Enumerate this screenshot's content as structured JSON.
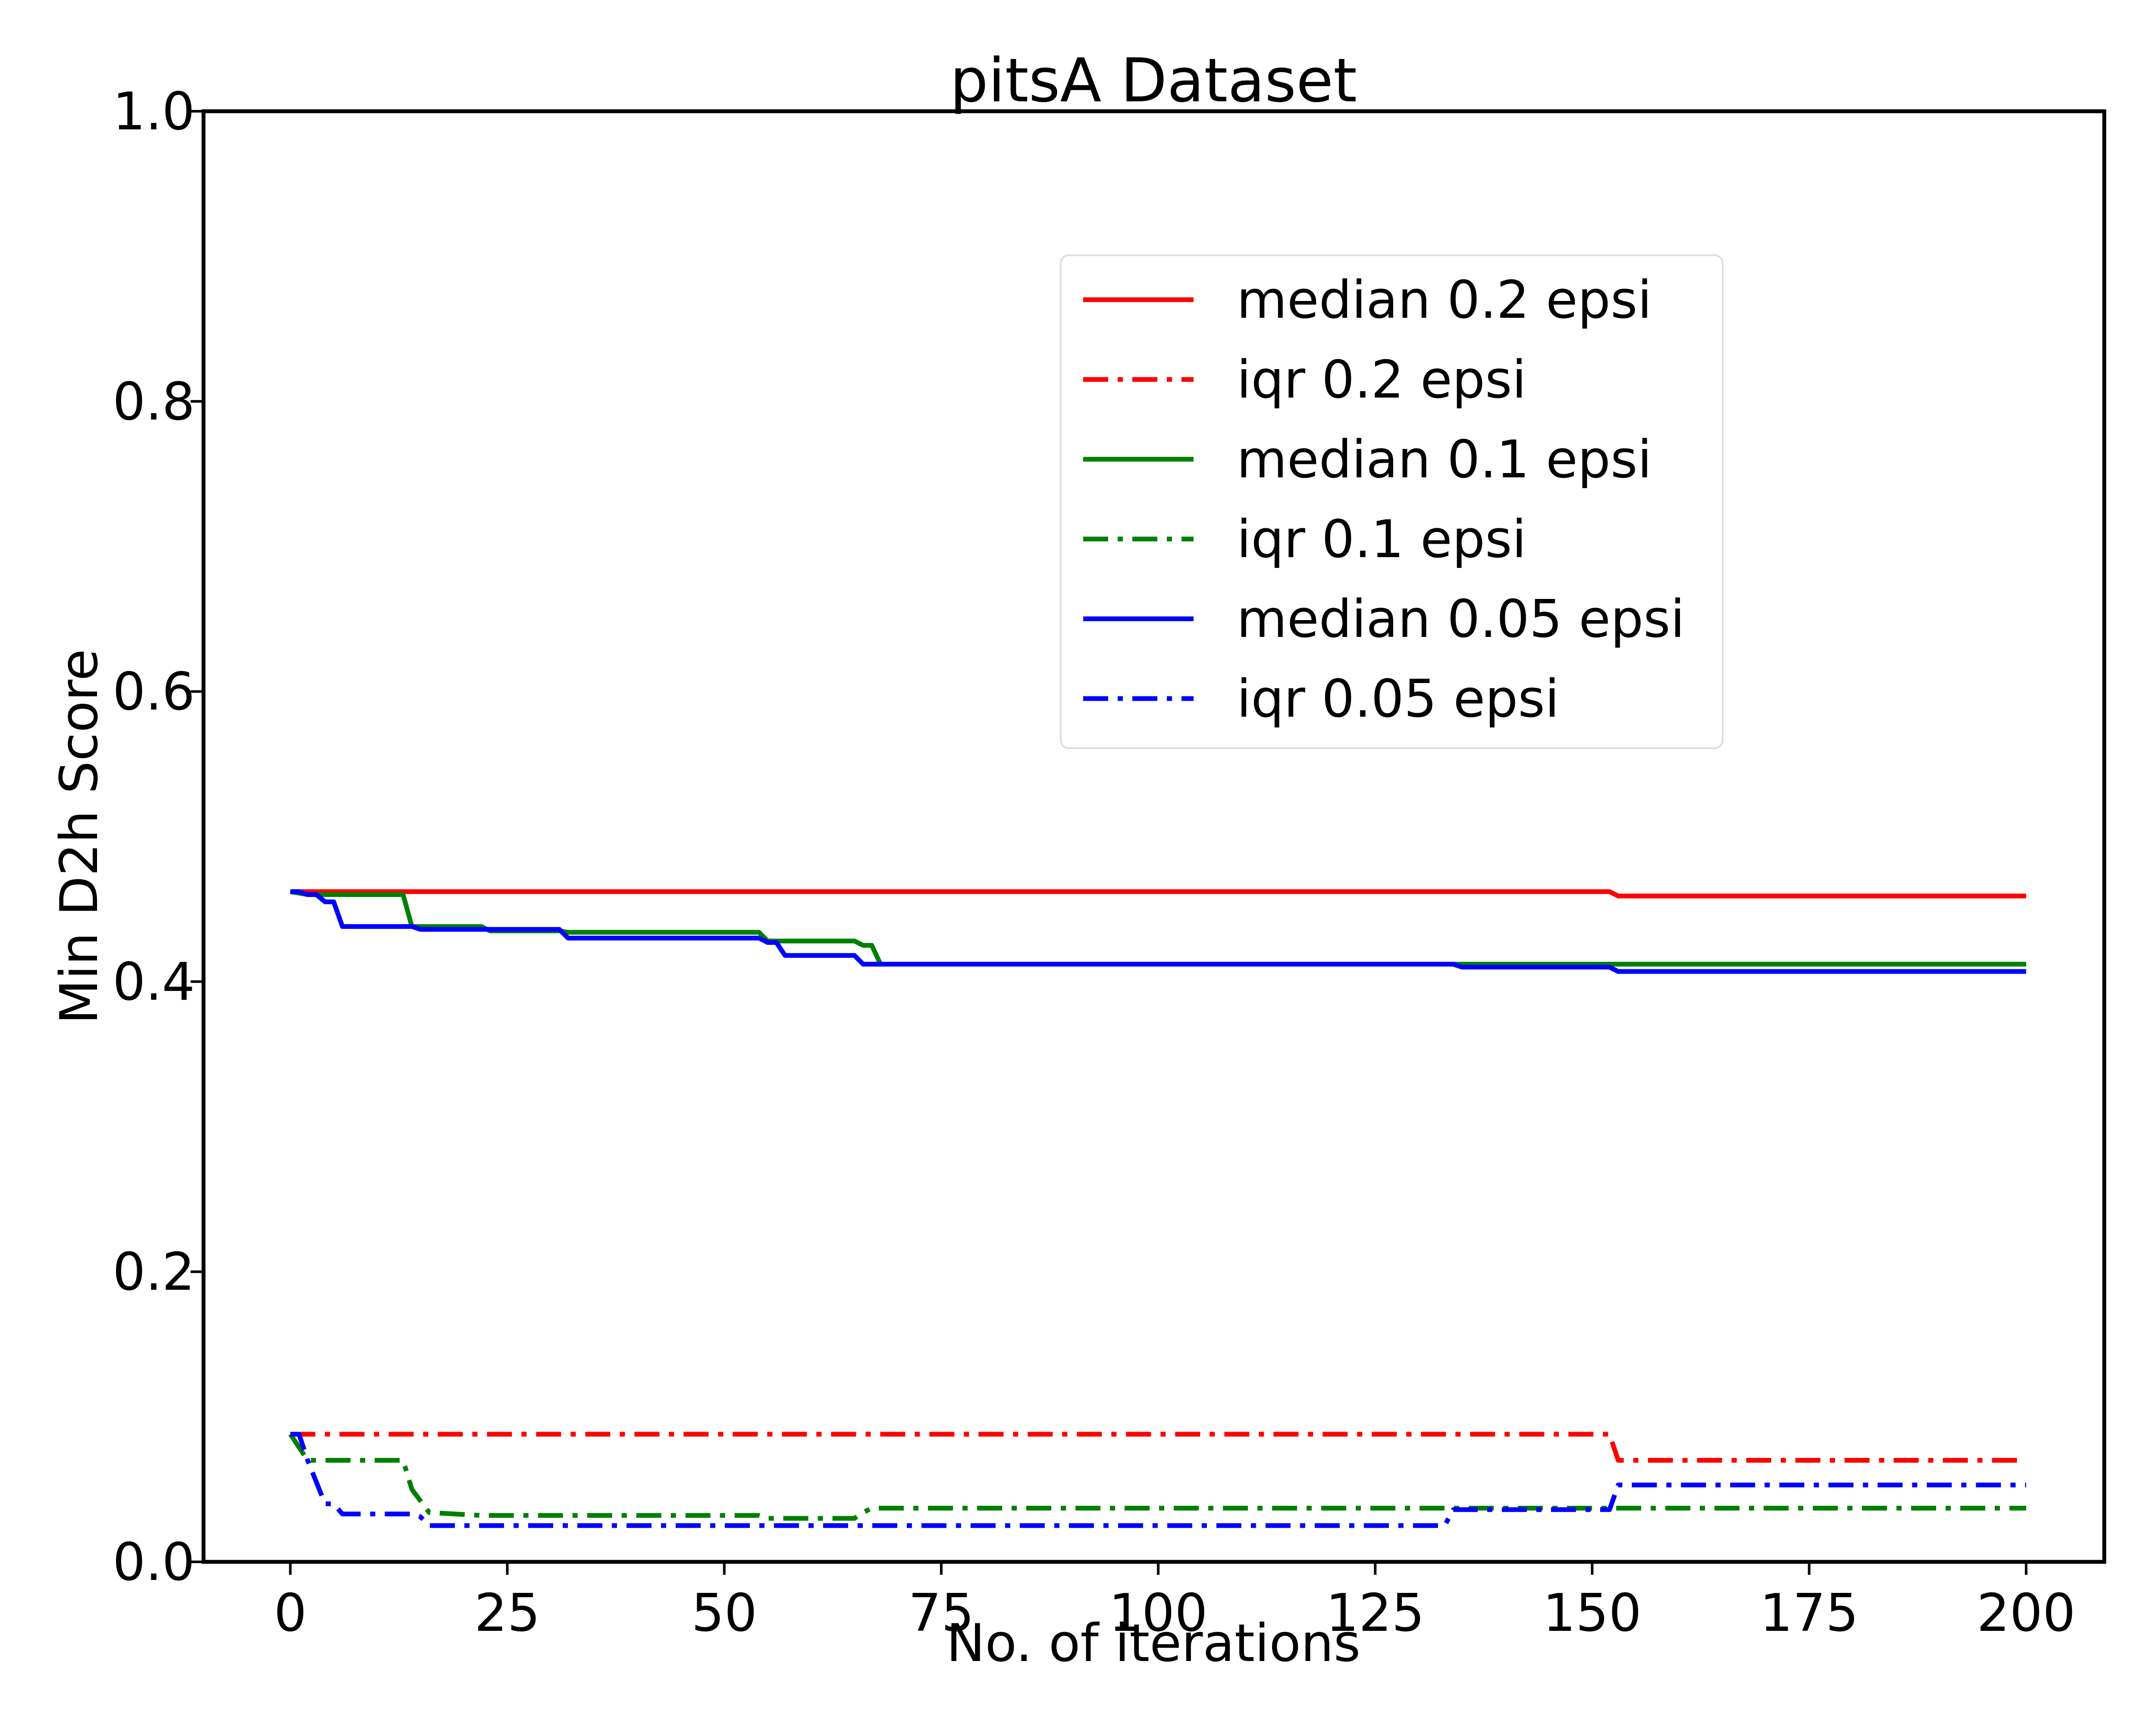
{
  "chart_data": {
    "type": "line",
    "title": "pitsA Dataset",
    "xlabel": "No. of iterations",
    "ylabel": "Min D2h Score",
    "xlim": [
      -10,
      209
    ],
    "ylim": [
      0.0,
      1.0
    ],
    "xticks": [
      0,
      25,
      50,
      75,
      100,
      125,
      150,
      175,
      200
    ],
    "yticks": [
      0.0,
      0.2,
      0.4,
      0.6,
      0.8,
      1.0
    ],
    "xtick_labels": [
      "0",
      "25",
      "50",
      "75",
      "100",
      "125",
      "150",
      "175",
      "200"
    ],
    "ytick_labels": [
      "0.0",
      "0.2",
      "0.4",
      "0.6",
      "0.8",
      "1.0"
    ],
    "grid": false,
    "legend_position": "upper right",
    "series": [
      {
        "name": "median 0.2 epsi",
        "color": "#ff0000",
        "style": "solid",
        "x": [
          0,
          152,
          153,
          200
        ],
        "y": [
          0.462,
          0.462,
          0.459,
          0.459
        ]
      },
      {
        "name": "iqr 0.2 epsi",
        "color": "#ff0000",
        "style": "dashdot",
        "x": [
          0,
          152,
          153,
          200
        ],
        "y": [
          0.088,
          0.088,
          0.07,
          0.07
        ]
      },
      {
        "name": "median 0.1 epsi",
        "color": "#008000",
        "style": "solid",
        "x": [
          0,
          2,
          13,
          14,
          22,
          23,
          31,
          32,
          54,
          55,
          65,
          66,
          67,
          68,
          200
        ],
        "y": [
          0.462,
          0.46,
          0.46,
          0.438,
          0.438,
          0.435,
          0.435,
          0.434,
          0.434,
          0.428,
          0.428,
          0.425,
          0.425,
          0.412,
          0.412
        ]
      },
      {
        "name": "iqr 0.1 epsi",
        "color": "#008000",
        "style": "dashdot",
        "x": [
          0,
          2,
          13,
          14,
          15,
          16,
          22,
          54,
          55,
          56,
          57,
          65,
          66,
          67,
          200
        ],
        "y": [
          0.088,
          0.07,
          0.07,
          0.05,
          0.042,
          0.034,
          0.032,
          0.032,
          0.03,
          0.03,
          0.03,
          0.03,
          0.034,
          0.037,
          0.037
        ]
      },
      {
        "name": "median 0.05 epsi",
        "color": "#0000ff",
        "style": "solid",
        "x": [
          0,
          1,
          2,
          3,
          4,
          5,
          6,
          14,
          15,
          31,
          32,
          54,
          55,
          56,
          57,
          65,
          66,
          134,
          135,
          152,
          153,
          200
        ],
        "y": [
          0.462,
          0.462,
          0.46,
          0.46,
          0.455,
          0.455,
          0.438,
          0.438,
          0.436,
          0.436,
          0.43,
          0.43,
          0.427,
          0.427,
          0.418,
          0.418,
          0.412,
          0.412,
          0.41,
          0.41,
          0.407,
          0.407
        ]
      },
      {
        "name": "iqr 0.05 epsi",
        "color": "#0000ff",
        "style": "dashdot",
        "x": [
          0,
          1,
          2,
          4,
          5,
          6,
          14,
          15,
          16,
          133,
          134,
          152,
          153,
          200
        ],
        "y": [
          0.088,
          0.088,
          0.07,
          0.04,
          0.04,
          0.033,
          0.033,
          0.031,
          0.025,
          0.025,
          0.036,
          0.036,
          0.053,
          0.053
        ]
      }
    ]
  }
}
